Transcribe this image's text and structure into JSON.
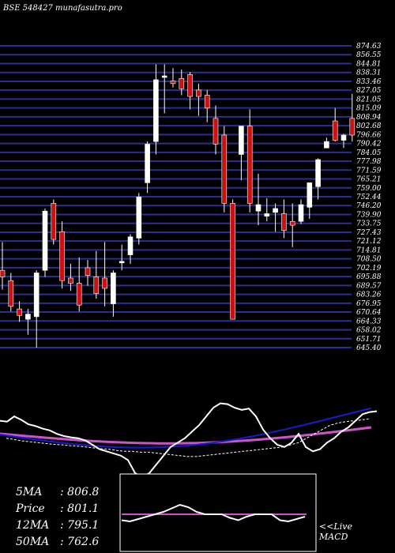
{
  "header": {
    "title": "BSE 548427 munafasutra.pro"
  },
  "colors": {
    "background": "#000000",
    "grid": "#2b2f8f",
    "up_candle": "#ffffff",
    "down_candle": "#cc1111",
    "rsi_line": "#ffffff",
    "ma_pink": "#cc55cc",
    "ma_blue": "#1a1acc",
    "macd_line": "#cc55cc"
  },
  "stats": {
    "ma5_label": "5MA",
    "ma5_value": ": 806.8",
    "price_label": "Price",
    "price_value": ": 801.1",
    "ma12_label": "12MA",
    "ma12_value": ": 795.1",
    "ma50_label": "50MA",
    "ma50_value": ": 762.6"
  },
  "macd": {
    "label_line1": "<<Live",
    "label_line2": "MACD"
  },
  "chart_data": [
    {
      "type": "candlestick",
      "title": "BSE 548427 munafasutra.pro",
      "ylim": [
        640,
        878
      ],
      "y_tick_labels": [
        "874.63",
        "856.55",
        "844.81",
        "838.31",
        "833.46",
        "827.05",
        "821.05",
        "815.09",
        "808.94",
        "802.68",
        "796.66",
        "790.42",
        "784.05",
        "777.98",
        "771.59",
        "765.21",
        "759.00",
        "752.44",
        "746.20",
        "739.90",
        "733.75",
        "727.43",
        "721.12",
        "714.81",
        "708.50",
        "702.19",
        "695.88",
        "689.57",
        "683.26",
        "676.95",
        "670.64",
        "664.33",
        "658.02",
        "651.71",
        "645.40"
      ],
      "candles": [
        {
          "o": 700,
          "h": 722,
          "l": 685,
          "c": 695
        },
        {
          "o": 692,
          "h": 698,
          "l": 668,
          "c": 672
        },
        {
          "o": 670,
          "h": 676,
          "l": 660,
          "c": 665
        },
        {
          "o": 662,
          "h": 670,
          "l": 650,
          "c": 666
        },
        {
          "o": 664,
          "h": 700,
          "l": 640,
          "c": 698
        },
        {
          "o": 700,
          "h": 748,
          "l": 695,
          "c": 746
        },
        {
          "o": 752,
          "h": 755,
          "l": 720,
          "c": 724
        },
        {
          "o": 730,
          "h": 738,
          "l": 686,
          "c": 692
        },
        {
          "o": 694,
          "h": 705,
          "l": 684,
          "c": 690
        },
        {
          "o": 690,
          "h": 710,
          "l": 668,
          "c": 673
        },
        {
          "o": 702,
          "h": 708,
          "l": 688,
          "c": 696
        },
        {
          "o": 695,
          "h": 715,
          "l": 678,
          "c": 682
        },
        {
          "o": 694,
          "h": 722,
          "l": 672,
          "c": 686
        },
        {
          "o": 674,
          "h": 700,
          "l": 664,
          "c": 698
        },
        {
          "o": 706,
          "h": 720,
          "l": 700,
          "c": 707
        },
        {
          "o": 712,
          "h": 728,
          "l": 705,
          "c": 726
        },
        {
          "o": 725,
          "h": 760,
          "l": 720,
          "c": 757
        },
        {
          "o": 768,
          "h": 800,
          "l": 760,
          "c": 798
        },
        {
          "o": 800,
          "h": 860,
          "l": 790,
          "c": 848
        },
        {
          "o": 850,
          "h": 860,
          "l": 822,
          "c": 851
        },
        {
          "o": 847,
          "h": 857,
          "l": 842,
          "c": 845
        },
        {
          "o": 849,
          "h": 856,
          "l": 836,
          "c": 841
        },
        {
          "o": 852,
          "h": 854,
          "l": 825,
          "c": 835
        },
        {
          "o": 840,
          "h": 845,
          "l": 820,
          "c": 835
        },
        {
          "o": 836,
          "h": 840,
          "l": 815,
          "c": 826
        },
        {
          "o": 818,
          "h": 828,
          "l": 790,
          "c": 798
        },
        {
          "o": 805,
          "h": 812,
          "l": 745,
          "c": 752
        },
        {
          "o": 752,
          "h": 755,
          "l": 662,
          "c": 662
        },
        {
          "o": 790,
          "h": 810,
          "l": 770,
          "c": 812
        },
        {
          "o": 812,
          "h": 825,
          "l": 745,
          "c": 752
        },
        {
          "o": 746,
          "h": 775,
          "l": 735,
          "c": 751
        },
        {
          "o": 742,
          "h": 756,
          "l": 738,
          "c": 744
        },
        {
          "o": 745,
          "h": 752,
          "l": 730,
          "c": 748
        },
        {
          "o": 744,
          "h": 755,
          "l": 725,
          "c": 731
        },
        {
          "o": 738,
          "h": 752,
          "l": 718,
          "c": 735
        },
        {
          "o": 738,
          "h": 755,
          "l": 736,
          "c": 751
        },
        {
          "o": 749,
          "h": 768,
          "l": 740,
          "c": 768
        },
        {
          "o": 765,
          "h": 787,
          "l": 755,
          "c": 786
        },
        {
          "o": 795,
          "h": 803,
          "l": 795,
          "c": 800
        },
        {
          "o": 816,
          "h": 826,
          "l": 800,
          "c": 801
        },
        {
          "o": 801,
          "h": 806,
          "l": 795,
          "c": 805
        },
        {
          "o": 818,
          "h": 837,
          "l": 800,
          "c": 805
        }
      ]
    },
    {
      "type": "line",
      "panel": "rsi",
      "series": [
        {
          "color": "#ffffff",
          "values": [
            60,
            58,
            70,
            62,
            52,
            48,
            42,
            38,
            30,
            25,
            22,
            20,
            15,
            5,
            -5,
            -10,
            -15,
            -20,
            -30,
            -60,
            -70,
            -60,
            -40,
            -20,
            0,
            10,
            20,
            35,
            50,
            70,
            90,
            100,
            98,
            90,
            85,
            88,
            70,
            40,
            20,
            5,
            0,
            10,
            30,
            0,
            -10,
            -5,
            10,
            20,
            35,
            45,
            60,
            75,
            80,
            82
          ]
        },
        {
          "color": "#ffffff",
          "values": [
            20,
            17,
            14,
            12,
            10,
            8,
            6,
            5,
            3,
            2,
            0,
            -2,
            -4,
            -5,
            -8,
            -10,
            -10,
            -12,
            -12,
            -14,
            -16,
            -18,
            -20,
            -22,
            -22,
            -20,
            -18,
            -16,
            -14,
            -12,
            -10,
            -8,
            -6,
            -4,
            -2,
            0,
            5,
            10,
            20,
            30,
            40,
            50,
            55,
            58,
            60,
            62,
            65
          ]
        }
      ]
    },
    {
      "type": "line",
      "panel": "macd",
      "series": [
        {
          "color": "#cc55cc",
          "values": [
            0,
            0,
            0,
            0,
            0,
            0,
            0,
            0,
            0,
            0,
            0,
            0,
            0,
            0,
            0,
            0,
            0,
            0,
            0,
            0,
            0,
            0,
            0,
            0
          ]
        },
        {
          "color": "#ffffff",
          "values": [
            -5,
            -6,
            -4,
            -2,
            0,
            2,
            5,
            8,
            6,
            2,
            0,
            0,
            0,
            -3,
            -5,
            -2,
            0,
            0,
            0,
            -5,
            -6,
            -4,
            -2
          ]
        }
      ]
    }
  ]
}
